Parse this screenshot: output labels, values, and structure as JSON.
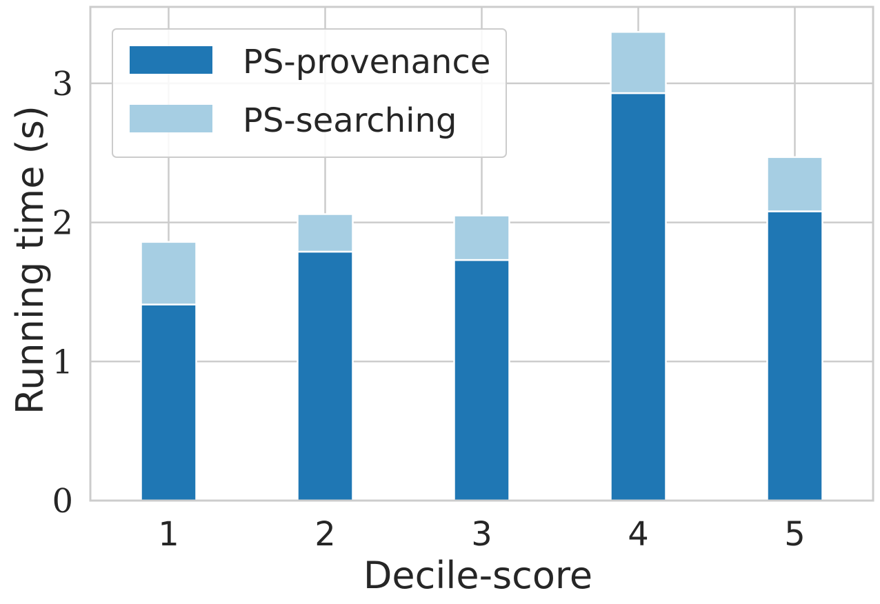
{
  "chart_data": {
    "type": "bar",
    "stacked": true,
    "title": "",
    "xlabel": "Decile-score",
    "ylabel": "Running time (s)",
    "categories": [
      "1",
      "2",
      "3",
      "4",
      "5"
    ],
    "series": [
      {
        "name": "PS-provenance",
        "color": "#1f77b4",
        "values": [
          1.41,
          1.79,
          1.73,
          2.93,
          2.08
        ]
      },
      {
        "name": "PS-searching",
        "color": "#a6cee3",
        "values": [
          0.45,
          0.27,
          0.32,
          0.44,
          0.39
        ]
      }
    ],
    "ylim": [
      0,
      3.55
    ],
    "yticks": [
      "0",
      "1",
      "2",
      "3"
    ],
    "grid": true,
    "legend_position": "top-left"
  }
}
